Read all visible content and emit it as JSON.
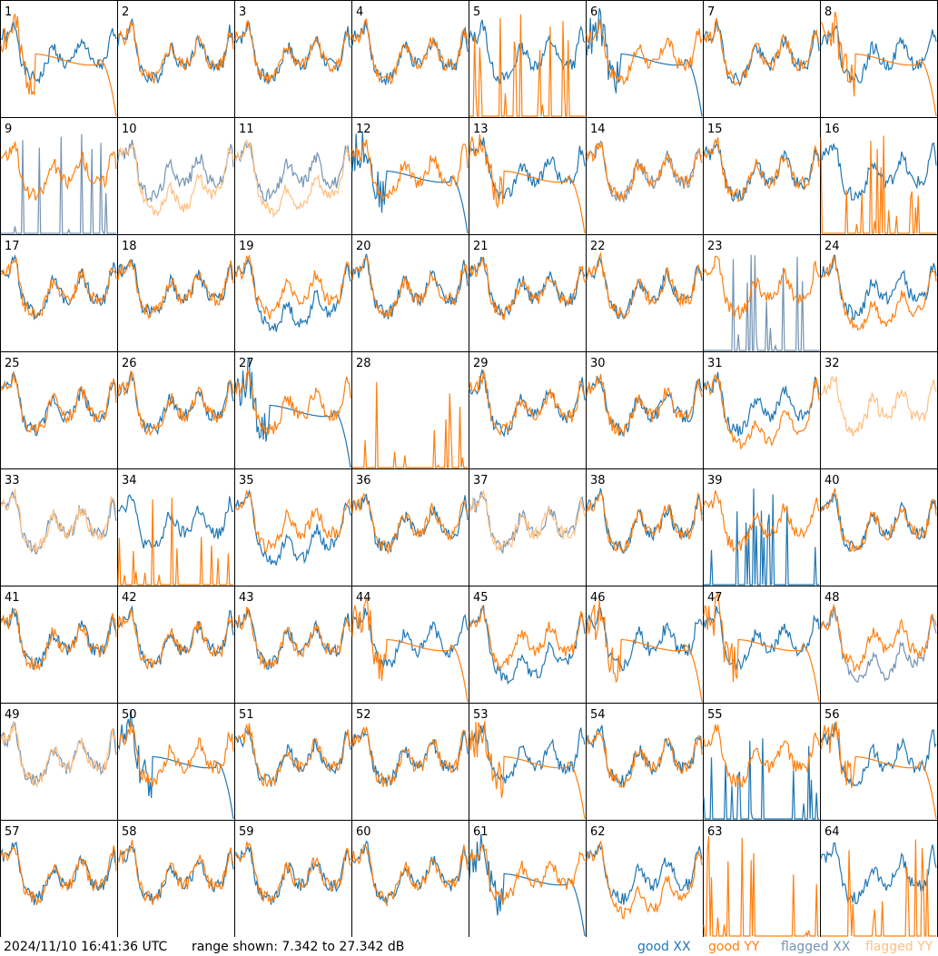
{
  "chart_data": {
    "type": "line",
    "grid": "8x8 small multiples",
    "panels": [
      "1",
      "2",
      "3",
      "4",
      "5",
      "6",
      "7",
      "8",
      "9",
      "10",
      "11",
      "12",
      "13",
      "14",
      "15",
      "16",
      "17",
      "18",
      "19",
      "20",
      "21",
      "22",
      "23",
      "24",
      "25",
      "26",
      "27",
      "28",
      "29",
      "30",
      "31",
      "32",
      "33",
      "34",
      "35",
      "36",
      "37",
      "38",
      "39",
      "40",
      "41",
      "42",
      "43",
      "44",
      "45",
      "46",
      "47",
      "48",
      "49",
      "50",
      "51",
      "52",
      "53",
      "54",
      "55",
      "56",
      "57",
      "58",
      "59",
      "60",
      "61",
      "62",
      "63",
      "64"
    ],
    "ylim": [
      7.342,
      27.342
    ],
    "series": [
      {
        "name": "good XX",
        "color": "#1f77b4"
      },
      {
        "name": "good YY",
        "color": "#ff7f0e"
      },
      {
        "name": "flagged XX",
        "color": "#7393b3"
      },
      {
        "name": "flagged YY",
        "color": "#ffbf80"
      }
    ],
    "panel_shapes": {
      "1": {
        "x": "blue",
        "y": "rolloff"
      },
      "5": {
        "x": "blue",
        "y": "spike"
      },
      "6": {
        "x": "rolloff",
        "y": "orange"
      },
      "8": {
        "x": "blue",
        "y": "rolloff"
      },
      "9": {
        "x": "flagspike",
        "y": "orange"
      },
      "10": {
        "x": "flagbase",
        "y": "flagdip"
      },
      "11": {
        "x": "flagbase",
        "y": "flagdip"
      },
      "12": {
        "x": "rolloff",
        "y": "orange"
      },
      "13": {
        "x": "blue",
        "y": "rolloff"
      },
      "14": {
        "x": "flagbase",
        "y": "orange"
      },
      "16": {
        "x": "blue",
        "y": "spike"
      },
      "19": {
        "x": "dip",
        "y": "orange"
      },
      "23": {
        "x": "flagspike",
        "y": "orange"
      },
      "24": {
        "x": "blue",
        "y": "dip"
      },
      "27": {
        "x": "rolloff",
        "y": "orange"
      },
      "28": {
        "x": "none",
        "y": "spike"
      },
      "31": {
        "x": "blue",
        "y": "dip"
      },
      "32": {
        "x": "none",
        "y": "flagbase"
      },
      "33": {
        "x": "flagbase",
        "y": "flagbase"
      },
      "34": {
        "x": "blue",
        "y": "spike"
      },
      "35": {
        "x": "dip",
        "y": "orange"
      },
      "37": {
        "x": "flagbase",
        "y": "flagbase"
      },
      "39": {
        "x": "spike",
        "y": "orange"
      },
      "44": {
        "x": "blue",
        "y": "rolloff"
      },
      "45": {
        "x": "dip",
        "y": "orange"
      },
      "46": {
        "x": "blue",
        "y": "rolloff"
      },
      "47": {
        "x": "blue",
        "y": "rolloff"
      },
      "48": {
        "x": "flagdip",
        "y": "orange"
      },
      "49": {
        "x": "flagbase",
        "y": "flagbase"
      },
      "50": {
        "x": "rolloff",
        "y": "orange"
      },
      "53": {
        "x": "blue",
        "y": "rolloff"
      },
      "55": {
        "x": "spike",
        "y": "orange"
      },
      "56": {
        "x": "blue",
        "y": "rolloff"
      },
      "61": {
        "x": "rolloff",
        "y": "orange"
      },
      "62": {
        "x": "blue",
        "y": "dip"
      },
      "63": {
        "x": "none",
        "y": "spike"
      },
      "64": {
        "x": "blue",
        "y": "spike"
      }
    }
  },
  "footer": {
    "timestamp": "2024/11/10 16:41:36 UTC",
    "range_text": "range shown: 7.342 to 27.342 dB",
    "legend_good_xx": "good XX",
    "legend_good_yy": "good YY",
    "legend_flagged_xx": "flagged XX",
    "legend_flagged_yy": "flagged YY"
  }
}
